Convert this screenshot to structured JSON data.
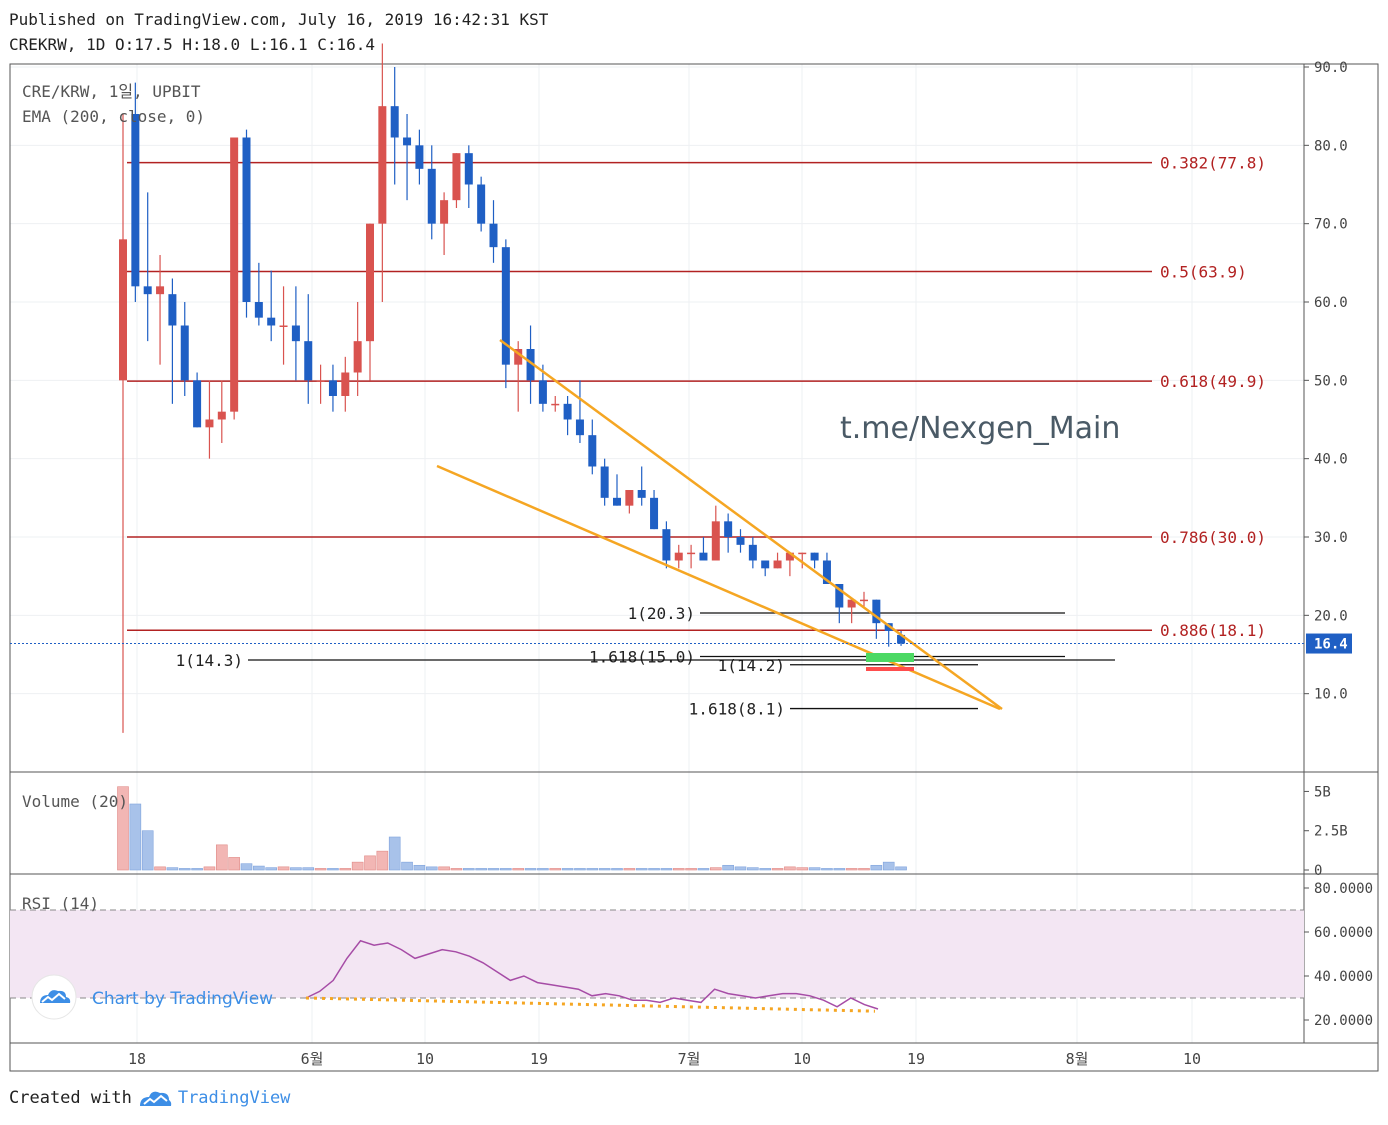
{
  "header": {
    "published": "Published on TradingView.com, July 16, 2019 16:42:31 KST",
    "ohlc": "CREKRW, 1D O:17.5 H:18.0 L:16.1 C:16.4"
  },
  "legend": {
    "symbol": "CRE/KRW, 1일, UPBIT",
    "ema": "EMA (200, close, 0)"
  },
  "watermark": "t.me/Nexgen_Main",
  "branding": {
    "chart_by": "Chart by TradingView",
    "created_with": "Created with",
    "logo_text": "TradingView"
  },
  "colors": {
    "up": "#d9534f",
    "down": "#1f5fc4",
    "fib": "#b22222",
    "wedge": "#f5a623",
    "rsi": "#a64ca6"
  },
  "chart_data": {
    "type": "candlestick",
    "title": "",
    "price_axis": {
      "ticks": [
        "90.0",
        "80.0",
        "70.0",
        "60.0",
        "50.0",
        "40.0",
        "30.0",
        "20.0",
        "10.0"
      ],
      "range": [
        0,
        90
      ]
    },
    "last_price": "16.4",
    "x_ticks": [
      "18",
      "6월",
      "10",
      "19",
      "7월",
      "10",
      "19",
      "8월",
      "10"
    ],
    "candles": [
      [
        50,
        84,
        5,
        68
      ],
      [
        84,
        88,
        60,
        62
      ],
      [
        62,
        74,
        55,
        61
      ],
      [
        61,
        66,
        52,
        62
      ],
      [
        61,
        63,
        47,
        57
      ],
      [
        57,
        60,
        48,
        50
      ],
      [
        50,
        51,
        44,
        44
      ],
      [
        44,
        50,
        40,
        45
      ],
      [
        45,
        50,
        42,
        46
      ],
      [
        46,
        81,
        45,
        81
      ],
      [
        81,
        82,
        58,
        60
      ],
      [
        60,
        65,
        57,
        58
      ],
      [
        58,
        64,
        55,
        57
      ],
      [
        57,
        62,
        52,
        57
      ],
      [
        57,
        62,
        50,
        55
      ],
      [
        55,
        61,
        47,
        50
      ],
      [
        50,
        52,
        47,
        50
      ],
      [
        50,
        52,
        46,
        48
      ],
      [
        48,
        53,
        46,
        51
      ],
      [
        51,
        60,
        48,
        55
      ],
      [
        55,
        70,
        50,
        70
      ],
      [
        70,
        93,
        60,
        85
      ],
      [
        85,
        90,
        75,
        81
      ],
      [
        81,
        84,
        73,
        80
      ],
      [
        80,
        82,
        75,
        77
      ],
      [
        77,
        80,
        68,
        70
      ],
      [
        70,
        74,
        66,
        73
      ],
      [
        73,
        79,
        72,
        79
      ],
      [
        79,
        80,
        72,
        75
      ],
      [
        75,
        76,
        69,
        70
      ],
      [
        70,
        73,
        65,
        67
      ],
      [
        67,
        68,
        49,
        52
      ],
      [
        52,
        55,
        46,
        54
      ],
      [
        54,
        57,
        47,
        50
      ],
      [
        50,
        52,
        46,
        47
      ],
      [
        47,
        48,
        46,
        47
      ],
      [
        47,
        48,
        43,
        45
      ],
      [
        45,
        50,
        42,
        43
      ],
      [
        43,
        45,
        38,
        39
      ],
      [
        39,
        40,
        34,
        35
      ],
      [
        35,
        38,
        34,
        34
      ],
      [
        34,
        36,
        33,
        36
      ],
      [
        36,
        39,
        34,
        35
      ],
      [
        35,
        36,
        31,
        31
      ],
      [
        31,
        32,
        26,
        27
      ],
      [
        27,
        29,
        26,
        28
      ],
      [
        28,
        29,
        26,
        28
      ],
      [
        28,
        30,
        27,
        27
      ],
      [
        27,
        34,
        27,
        32
      ],
      [
        32,
        33,
        28,
        30
      ],
      [
        30,
        31,
        28,
        29
      ],
      [
        29,
        30,
        26,
        27
      ],
      [
        27,
        27,
        25,
        26
      ],
      [
        26,
        28,
        26,
        27
      ],
      [
        27,
        28,
        25,
        28
      ],
      [
        28,
        28,
        26,
        28
      ],
      [
        28,
        28,
        26,
        27
      ],
      [
        27,
        28,
        24,
        24
      ],
      [
        24,
        24,
        19,
        21
      ],
      [
        21,
        22,
        19,
        22
      ],
      [
        22,
        23,
        21,
        22
      ],
      [
        22,
        22,
        17,
        19
      ],
      [
        19,
        19,
        16,
        18
      ],
      [
        17.5,
        18,
        16.1,
        16.4
      ]
    ],
    "fib_levels": [
      {
        "label": "0.382(77.8)",
        "value": 77.8
      },
      {
        "label": "0.5(63.9)",
        "value": 63.9
      },
      {
        "label": "0.618(49.9)",
        "value": 49.9
      },
      {
        "label": "0.786(30.0)",
        "value": 30.0
      },
      {
        "label": "0.886(18.1)",
        "value": 18.1
      }
    ],
    "projections": [
      {
        "label": "1(20.3)",
        "value": 20.3
      },
      {
        "label": "1.618(15.0)",
        "value": 15.0
      },
      {
        "label": "1(14.2)",
        "value": 14.2
      },
      {
        "label": "1(14.3)",
        "value": 14.3
      },
      {
        "label": "1.618(8.1)",
        "value": 8.1
      }
    ],
    "volume": {
      "label": "Volume (20)",
      "ticks": [
        "5B",
        "2.5B",
        "0"
      ],
      "values": [
        5.3,
        4.2,
        2.5,
        0.2,
        0.15,
        0.1,
        0.1,
        0.2,
        1.6,
        0.8,
        0.4,
        0.25,
        0.15,
        0.2,
        0.15,
        0.15,
        0.1,
        0.1,
        0.1,
        0.5,
        0.9,
        1.2,
        2.1,
        0.5,
        0.3,
        0.2,
        0.2,
        0.1,
        0.1,
        0.1,
        0.1,
        0.1,
        0.1,
        0.1,
        0.1,
        0.1,
        0.1,
        0.1,
        0.1,
        0.1,
        0.1,
        0.1,
        0.1,
        0.1,
        0.1,
        0.1,
        0.1,
        0.1,
        0.15,
        0.3,
        0.2,
        0.15,
        0.1,
        0.1,
        0.2,
        0.15,
        0.15,
        0.1,
        0.1,
        0.1,
        0.1,
        0.3,
        0.5,
        0.2
      ]
    },
    "rsi": {
      "label": "RSI (14)",
      "ticks": [
        "80.0000",
        "60.0000",
        "40.0000",
        "20.0000"
      ],
      "values": [
        30,
        33,
        38,
        48,
        56,
        54,
        55,
        52,
        48,
        50,
        52,
        51,
        49,
        46,
        42,
        38,
        40,
        37,
        36,
        35,
        34,
        31,
        32,
        31,
        29,
        29,
        28,
        30,
        29,
        28,
        34,
        32,
        31,
        30,
        31,
        32,
        32,
        31,
        29,
        26,
        30,
        27,
        25
      ]
    }
  }
}
